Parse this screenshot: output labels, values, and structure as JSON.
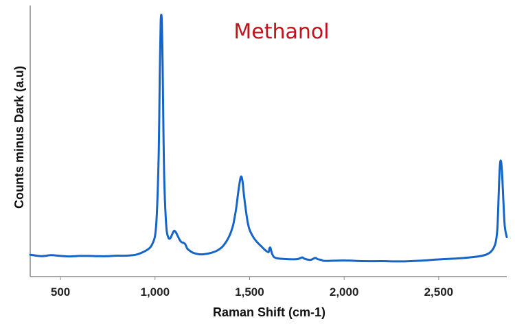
{
  "chart_data": {
    "type": "line",
    "title": "Methanol",
    "xlabel": "Raman Shift (cm-1)",
    "ylabel": "Counts minus Dark (a.u)",
    "xlim": [
      340,
      2860
    ],
    "ylim": [
      0,
      100
    ],
    "x_ticks": [
      500,
      1000,
      1500,
      2000,
      2500
    ],
    "x_tick_labels": [
      "500",
      "1,000",
      "1,500",
      "2,000",
      "2,500"
    ],
    "grid": false,
    "legend": "none",
    "colors": {
      "line": "#1565c8",
      "title": "#c0141c",
      "axis": "#8a8a8a",
      "text": "#222222"
    },
    "series": [
      {
        "x": [
          340,
          400,
          450,
          500,
          550,
          600,
          650,
          700,
          750,
          800,
          850,
          900,
          930,
          960,
          980,
          1000,
          1010,
          1020,
          1025,
          1030,
          1035,
          1040,
          1045,
          1050,
          1060,
          1070,
          1080,
          1090,
          1100,
          1110,
          1120,
          1130,
          1140,
          1150,
          1160,
          1170,
          1180,
          1200,
          1230,
          1260,
          1300,
          1330,
          1360,
          1390,
          1410,
          1420,
          1430,
          1440,
          1450,
          1455,
          1460,
          1465,
          1470,
          1480,
          1490,
          1500,
          1520,
          1540,
          1560,
          1580,
          1600,
          1605,
          1610,
          1615,
          1620,
          1630,
          1650,
          1700,
          1750,
          1770,
          1780,
          1790,
          1820,
          1840,
          1850,
          1860,
          1880,
          1900,
          2000,
          2100,
          2200,
          2300,
          2400,
          2500,
          2600,
          2700,
          2750,
          2780,
          2800,
          2810,
          2815,
          2820,
          2825,
          2830,
          2835,
          2840,
          2845,
          2850,
          2860
        ],
        "values": [
          3.0,
          2.4,
          2.8,
          2.5,
          2.3,
          2.5,
          2.5,
          2.4,
          2.4,
          2.6,
          2.6,
          3.0,
          3.8,
          5.0,
          6.5,
          10.5,
          20,
          45,
          75,
          96,
          98,
          80,
          50,
          30,
          14,
          10,
          9.5,
          11,
          12.5,
          12,
          10.5,
          9,
          8,
          7.8,
          7.2,
          5.5,
          4.8,
          3.8,
          3.2,
          3.2,
          3.8,
          4.7,
          6.5,
          10,
          14,
          17.5,
          22,
          28,
          33,
          34.3,
          33.5,
          31,
          27,
          21,
          16,
          13,
          10,
          8,
          6.5,
          5.0,
          4.0,
          5.5,
          5.8,
          4.4,
          3.2,
          2.0,
          1.5,
          1.2,
          1.2,
          1.7,
          1.9,
          1.4,
          0.9,
          1.5,
          1.7,
          1.2,
          0.9,
          0.5,
          0.7,
          0.4,
          0.4,
          0.3,
          0.6,
          1.1,
          1.5,
          2.2,
          3.0,
          4.5,
          7.5,
          13,
          22,
          33,
          39.8,
          40.2,
          36,
          28,
          20,
          14,
          10
        ]
      }
    ]
  }
}
